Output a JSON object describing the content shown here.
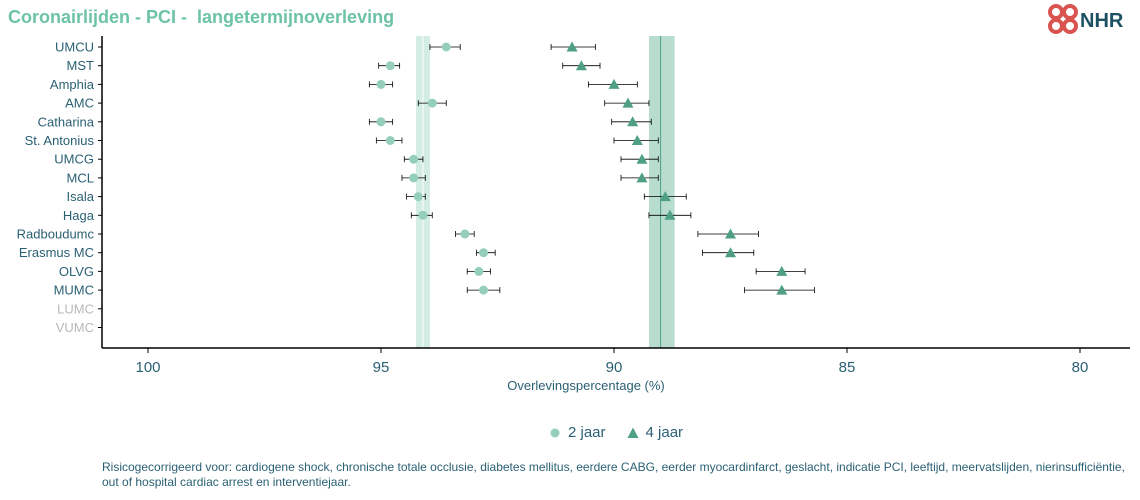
{
  "header": {
    "title": "Coronairlijden - PCI -  langetermijnoverleving",
    "logo_text": "NHR",
    "logo_color": "#d9534f"
  },
  "colors": {
    "two_year": "#95cfbb",
    "four_year": "#4f9f87",
    "band_two_year": "#d3ede4",
    "band_four_year": "#b8dccd",
    "line_four_year": "#4f9f87",
    "line_two_year": "#ffffff",
    "axis": "#000000",
    "text": "#2a6074",
    "muted": "#b8b8b8"
  },
  "chart_data": {
    "type": "scatter",
    "x_reversed": true,
    "xlim": [
      100,
      80
    ],
    "xticks": [
      100,
      95,
      90,
      85,
      80
    ],
    "xlabel": "Overlevingspercentage (%)",
    "ylabel": "",
    "grid": false,
    "legend_position": "bottom",
    "categories": [
      "UMCU",
      "MST",
      "Amphia",
      "AMC",
      "Catharina",
      "St. Antonius",
      "UMCG",
      "MCL",
      "Isala",
      "Haga",
      "Radboudumc",
      "Erasmus MC",
      "OLVG",
      "MUMC",
      "LUMC",
      "VUMC"
    ],
    "muted_categories": [
      "LUMC",
      "VUMC"
    ],
    "reference": {
      "two_year": {
        "value": 94.1,
        "ci": [
          94.25,
          93.95
        ]
      },
      "four_year": {
        "value": 89.0,
        "ci": [
          89.25,
          88.7
        ]
      }
    },
    "series": [
      {
        "name": "2 jaar",
        "marker": "circle",
        "values": [
          93.6,
          94.8,
          95.0,
          93.9,
          95.0,
          94.8,
          94.3,
          94.3,
          94.2,
          94.1,
          93.2,
          92.8,
          92.9,
          92.8,
          null,
          null
        ],
        "ci_low": [
          93.3,
          94.6,
          94.75,
          93.6,
          94.75,
          94.55,
          94.1,
          94.05,
          94.05,
          93.9,
          93.0,
          92.55,
          92.65,
          92.45,
          null,
          null
        ],
        "ci_high": [
          93.95,
          95.05,
          95.25,
          94.2,
          95.25,
          95.1,
          94.5,
          94.55,
          94.45,
          94.35,
          93.4,
          92.95,
          93.15,
          93.15,
          null,
          null
        ]
      },
      {
        "name": "4 jaar",
        "marker": "triangle",
        "values": [
          90.9,
          90.7,
          90.0,
          89.7,
          89.6,
          89.5,
          89.4,
          89.4,
          88.9,
          88.8,
          87.5,
          87.5,
          86.4,
          86.4,
          null,
          null
        ],
        "ci_low": [
          90.4,
          90.3,
          89.5,
          89.25,
          89.2,
          89.05,
          89.05,
          89.05,
          88.45,
          88.35,
          86.9,
          87.0,
          85.9,
          85.7,
          null,
          null
        ],
        "ci_high": [
          91.35,
          91.1,
          90.55,
          90.2,
          90.05,
          90.0,
          89.85,
          89.85,
          89.35,
          89.25,
          88.2,
          88.1,
          86.95,
          87.2,
          null,
          null
        ]
      }
    ]
  },
  "legend": {
    "items": [
      {
        "label": "2 jaar",
        "icon": "circle-marker-icon"
      },
      {
        "label": "4 jaar",
        "icon": "triangle-marker-icon"
      }
    ]
  },
  "footnote": "Risicogecorrigeerd voor: cardiogene shock, chronische totale occlusie, diabetes mellitus, eerdere CABG, eerder myocardinfarct, geslacht, indicatie PCI, leeftijd, meervatslijden, nierinsufficiëntie, out of hospital cardiac arrest en interventiejaar."
}
